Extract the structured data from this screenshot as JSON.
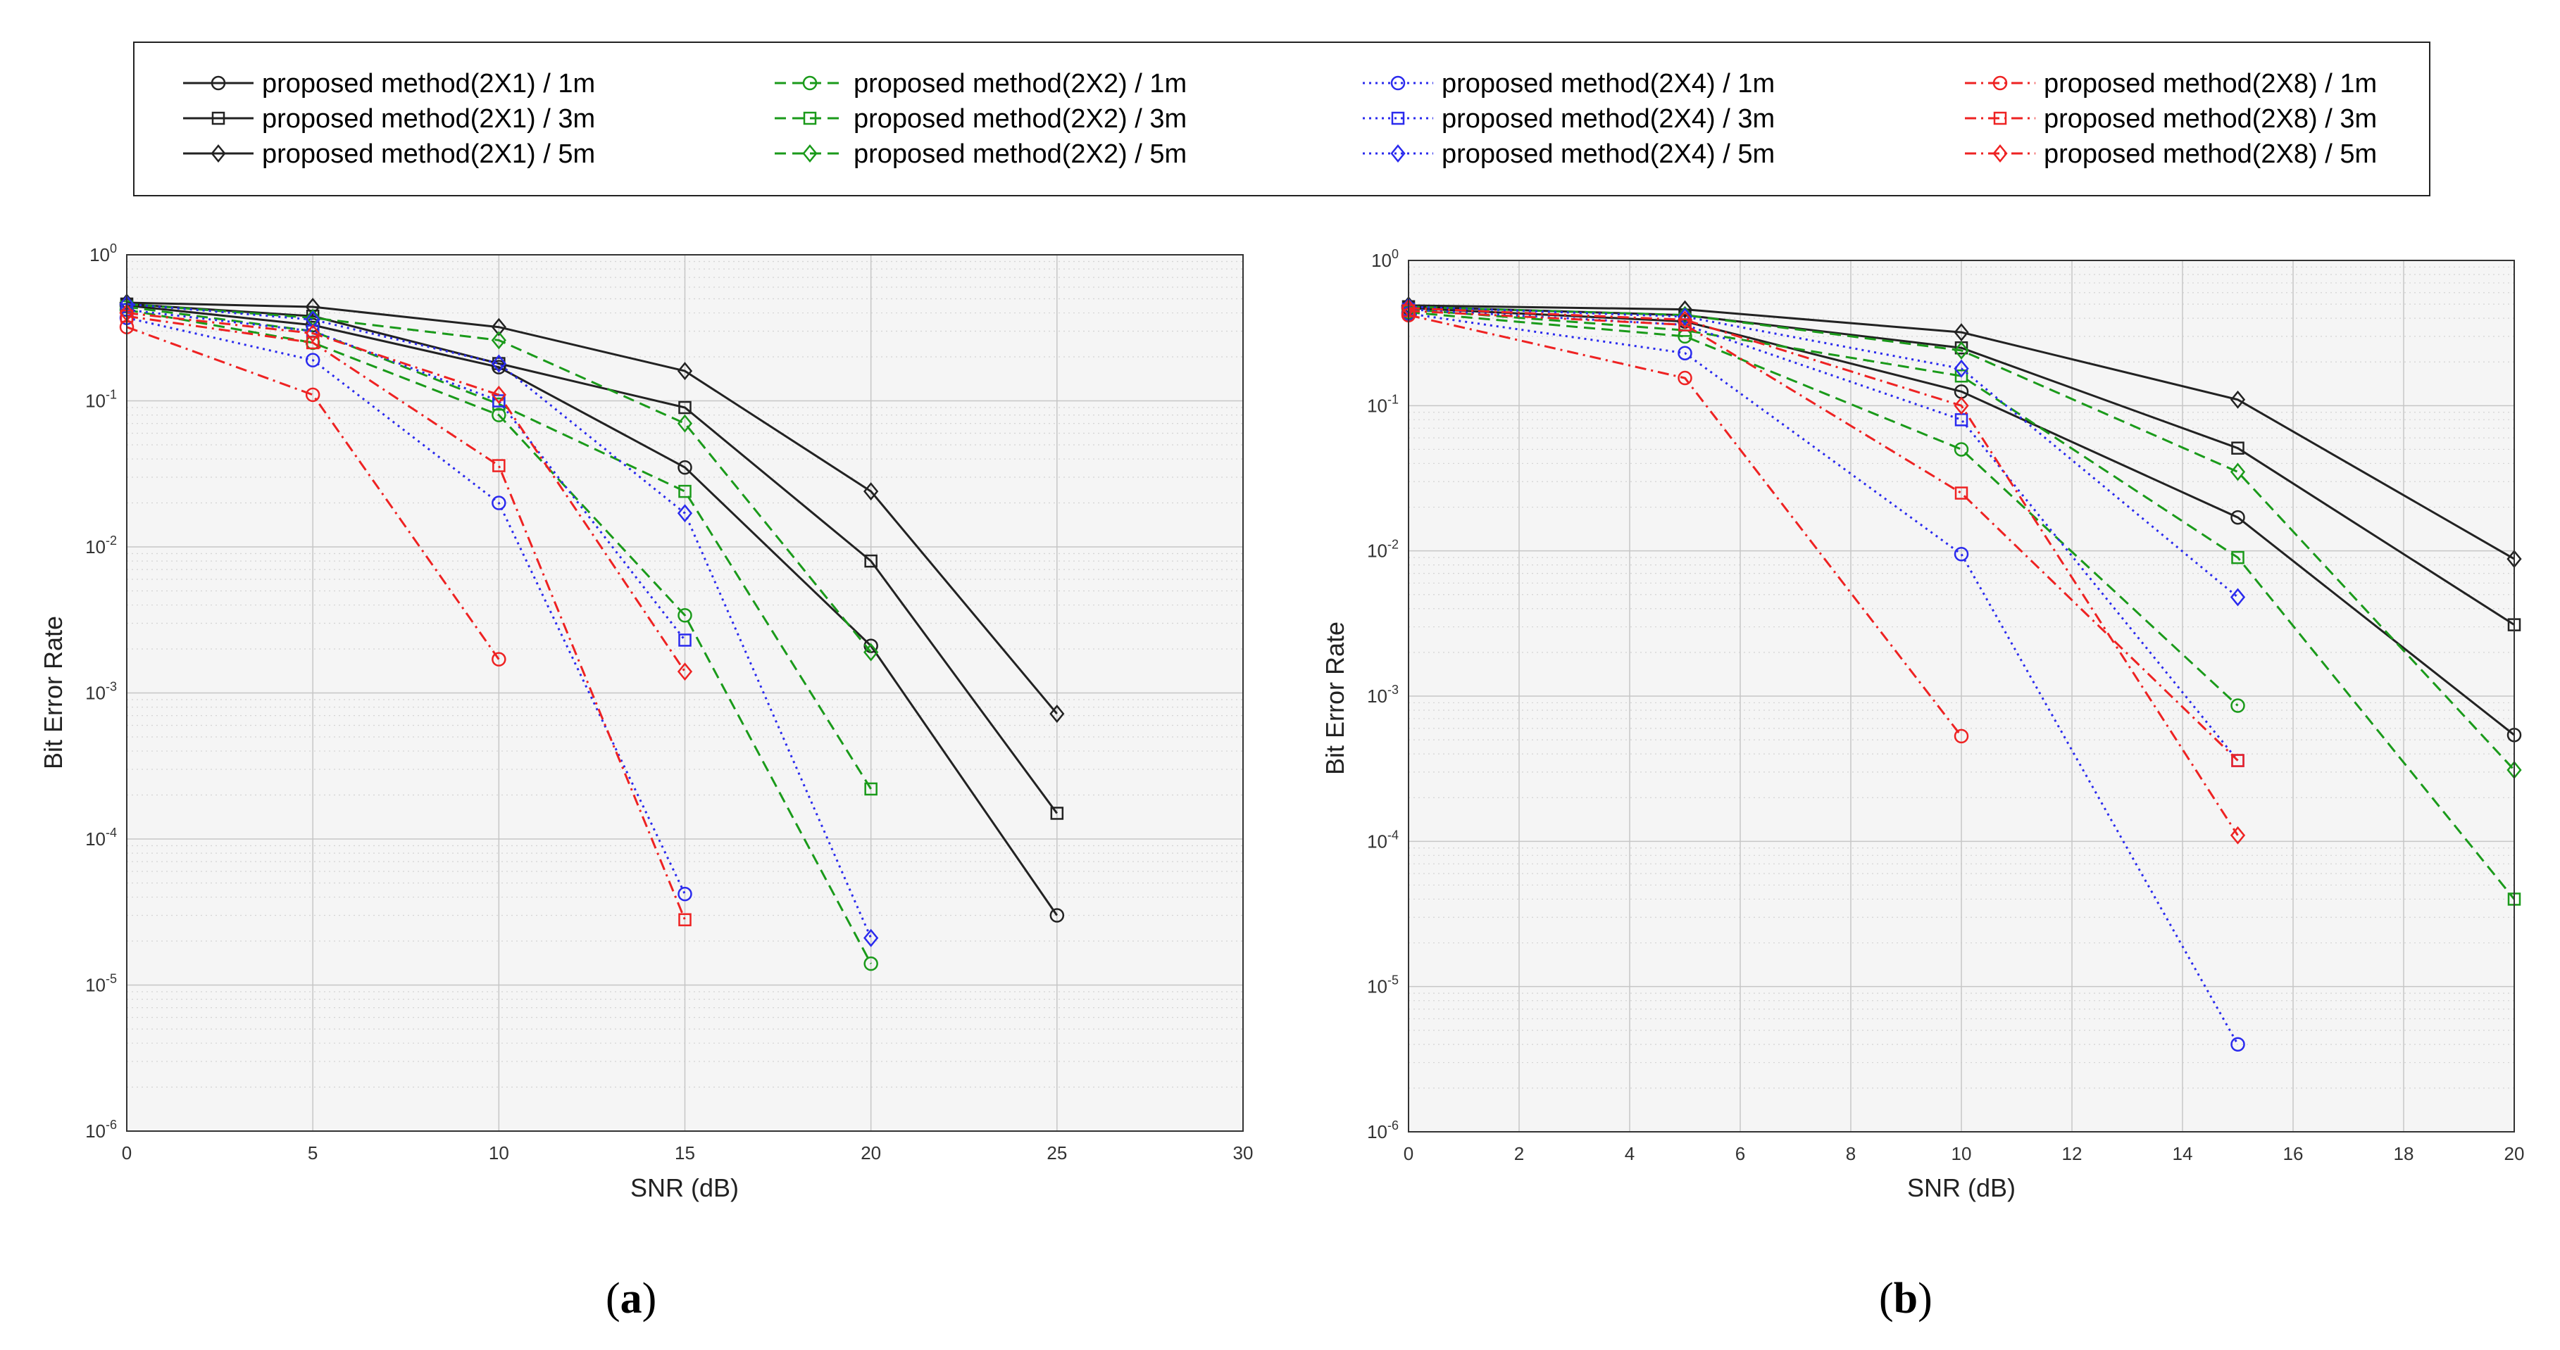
{
  "legend": {
    "entries": [
      {
        "label": "proposed method(2X1) / 1m",
        "color": "#222222",
        "dash": "solid",
        "marker": "circle"
      },
      {
        "label": "proposed method(2X1) / 3m",
        "color": "#222222",
        "dash": "solid",
        "marker": "square"
      },
      {
        "label": "proposed method(2X1) / 5m",
        "color": "#222222",
        "dash": "solid",
        "marker": "diamond"
      },
      {
        "label": "proposed method(2X2) / 1m",
        "color": "#1a9a1a",
        "dash": "dashed",
        "marker": "circle"
      },
      {
        "label": "proposed method(2X2) / 3m",
        "color": "#1a9a1a",
        "dash": "dashed",
        "marker": "square"
      },
      {
        "label": "proposed method(2X2) / 5m",
        "color": "#1a9a1a",
        "dash": "dashed",
        "marker": "diamond"
      },
      {
        "label": "proposed method(2X4) / 1m",
        "color": "#2a2aee",
        "dash": "dotted",
        "marker": "circle"
      },
      {
        "label": "proposed method(2X4) / 3m",
        "color": "#2a2aee",
        "dash": "dotted",
        "marker": "square"
      },
      {
        "label": "proposed method(2X4) / 5m",
        "color": "#2a2aee",
        "dash": "dotted",
        "marker": "diamond"
      },
      {
        "label": "proposed method(2X8) / 1m",
        "color": "#ee2222",
        "dash": "dashdot",
        "marker": "circle"
      },
      {
        "label": "proposed method(2X8) / 3m",
        "color": "#ee2222",
        "dash": "dashdot",
        "marker": "square"
      },
      {
        "label": "proposed method(2X8) / 5m",
        "color": "#ee2222",
        "dash": "dashdot",
        "marker": "diamond"
      }
    ]
  },
  "chart_data": [
    {
      "type": "line",
      "panel_label": "a",
      "xlabel": "SNR (dB)",
      "ylabel": "Bit Error Rate",
      "xlim": [
        0,
        30
      ],
      "ylim": [
        1e-06,
        1
      ],
      "yscale": "log",
      "grid": true,
      "xticks": [
        "0",
        "5",
        "10",
        "15",
        "20",
        "25",
        "30"
      ],
      "yticks": [
        {
          "base": "10",
          "exp": "0"
        },
        {
          "base": "10",
          "exp": "-1"
        },
        {
          "base": "10",
          "exp": "-2"
        },
        {
          "base": "10",
          "exp": "-3"
        },
        {
          "base": "10",
          "exp": "-4"
        },
        {
          "base": "10",
          "exp": "-5"
        },
        {
          "base": "10",
          "exp": "-6"
        }
      ],
      "series": [
        {
          "name": "proposed method(2X1) / 1m",
          "x": [
            0,
            5,
            10,
            15,
            20,
            25
          ],
          "y": [
            0.45,
            0.33,
            0.17,
            0.035,
            0.0021,
            3e-05
          ]
        },
        {
          "name": "proposed method(2X1) / 3m",
          "x": [
            0,
            5,
            10,
            15,
            20,
            25
          ],
          "y": [
            0.46,
            0.38,
            0.18,
            0.09,
            0.008,
            0.00015
          ]
        },
        {
          "name": "proposed method(2X1) / 5m",
          "x": [
            0,
            5,
            10,
            15,
            20,
            25
          ],
          "y": [
            0.47,
            0.44,
            0.32,
            0.16,
            0.024,
            0.00072
          ]
        },
        {
          "name": "proposed method(2X2) / 1m",
          "x": [
            0,
            5,
            10,
            15,
            20
          ],
          "y": [
            0.42,
            0.25,
            0.08,
            0.0034,
            1.4e-05
          ]
        },
        {
          "name": "proposed method(2X2) / 3m",
          "x": [
            0,
            5,
            10,
            15,
            20
          ],
          "y": [
            0.44,
            0.3,
            0.095,
            0.024,
            0.00022
          ]
        },
        {
          "name": "proposed method(2X2) / 5m",
          "x": [
            0,
            5,
            10,
            15,
            20
          ],
          "y": [
            0.46,
            0.37,
            0.26,
            0.07,
            0.0019
          ]
        },
        {
          "name": "proposed method(2X4) / 1m",
          "x": [
            0,
            5,
            10,
            15
          ],
          "y": [
            0.37,
            0.19,
            0.02,
            4.2e-05
          ]
        },
        {
          "name": "proposed method(2X4) / 3m",
          "x": [
            0,
            5,
            10,
            15
          ],
          "y": [
            0.42,
            0.3,
            0.1,
            0.0023
          ]
        },
        {
          "name": "proposed method(2X4) / 5m",
          "x": [
            0,
            5,
            10,
            15,
            20
          ],
          "y": [
            0.46,
            0.36,
            0.18,
            0.017,
            2.1e-05
          ]
        },
        {
          "name": "proposed method(2X8) / 1m",
          "x": [
            0,
            5,
            10
          ],
          "y": [
            0.32,
            0.11,
            0.0017
          ]
        },
        {
          "name": "proposed method(2X8) / 3m",
          "x": [
            0,
            5,
            10,
            15
          ],
          "y": [
            0.38,
            0.25,
            0.036,
            2.8e-05
          ]
        },
        {
          "name": "proposed method(2X8) / 5m",
          "x": [
            0,
            5,
            10,
            15
          ],
          "y": [
            0.4,
            0.29,
            0.11,
            0.0014
          ]
        }
      ]
    },
    {
      "type": "line",
      "panel_label": "b",
      "xlabel": "SNR (dB)",
      "ylabel": "Bit Error Rate",
      "xlim": [
        0,
        20
      ],
      "ylim": [
        1e-06,
        1
      ],
      "yscale": "log",
      "grid": true,
      "xticks": [
        "0",
        "2",
        "4",
        "6",
        "8",
        "10",
        "12",
        "14",
        "16",
        "18",
        "20"
      ],
      "yticks": [
        {
          "base": "10",
          "exp": "0"
        },
        {
          "base": "10",
          "exp": "-1"
        },
        {
          "base": "10",
          "exp": "-2"
        },
        {
          "base": "10",
          "exp": "-3"
        },
        {
          "base": "10",
          "exp": "-4"
        },
        {
          "base": "10",
          "exp": "-5"
        },
        {
          "base": "10",
          "exp": "-6"
        }
      ],
      "series": [
        {
          "name": "proposed method(2X1) / 1m",
          "x": [
            0,
            5,
            10,
            15,
            20
          ],
          "y": [
            0.47,
            0.38,
            0.125,
            0.017,
            0.00054
          ]
        },
        {
          "name": "proposed method(2X1) / 3m",
          "x": [
            0,
            5,
            10,
            15,
            20
          ],
          "y": [
            0.48,
            0.42,
            0.25,
            0.051,
            0.0031
          ]
        },
        {
          "name": "proposed method(2X1) / 5m",
          "x": [
            0,
            5,
            10,
            15,
            20
          ],
          "y": [
            0.49,
            0.46,
            0.32,
            0.11,
            0.0088
          ]
        },
        {
          "name": "proposed method(2X2) / 1m",
          "x": [
            0,
            5,
            10,
            15
          ],
          "y": [
            0.44,
            0.3,
            0.05,
            0.00086
          ]
        },
        {
          "name": "proposed method(2X2) / 3m",
          "x": [
            0,
            5,
            10,
            15,
            20
          ],
          "y": [
            0.46,
            0.33,
            0.16,
            0.009,
            4e-05
          ]
        },
        {
          "name": "proposed method(2X2) / 5m",
          "x": [
            0,
            5,
            10,
            15,
            20
          ],
          "y": [
            0.48,
            0.42,
            0.24,
            0.035,
            0.00031
          ]
        },
        {
          "name": "proposed method(2X4) / 1m",
          "x": [
            0,
            5,
            10,
            15
          ],
          "y": [
            0.43,
            0.23,
            0.0095,
            4e-06
          ]
        },
        {
          "name": "proposed method(2X4) / 3m",
          "x": [
            0,
            5,
            10,
            15
          ],
          "y": [
            0.46,
            0.36,
            0.08,
            0.00036
          ]
        },
        {
          "name": "proposed method(2X4) / 5m",
          "x": [
            0,
            5,
            10,
            15
          ],
          "y": [
            0.48,
            0.41,
            0.18,
            0.0048
          ]
        },
        {
          "name": "proposed method(2X8) / 1m",
          "x": [
            0,
            5,
            10
          ],
          "y": [
            0.42,
            0.155,
            0.00053
          ]
        },
        {
          "name": "proposed method(2X8) / 3m",
          "x": [
            0,
            5,
            10,
            15
          ],
          "y": [
            0.45,
            0.36,
            0.025,
            0.00036
          ]
        },
        {
          "name": "proposed method(2X8) / 5m",
          "x": [
            0,
            5,
            10,
            15
          ],
          "y": [
            0.47,
            0.39,
            0.1,
            0.00011
          ]
        }
      ]
    }
  ]
}
